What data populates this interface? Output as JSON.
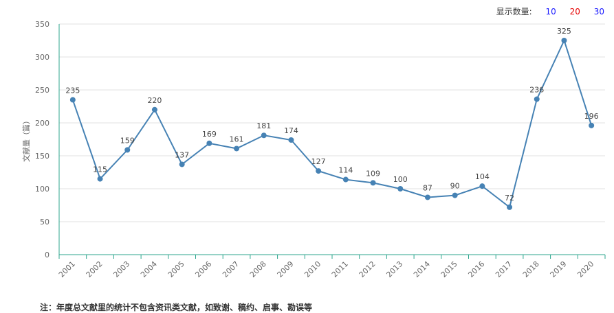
{
  "display_count": {
    "label": "显示数量:",
    "options": [
      {
        "label": "10",
        "color": "#1a1aff"
      },
      {
        "label": "20",
        "color": "#e60000"
      },
      {
        "label": "30",
        "color": "#1a1aff"
      }
    ]
  },
  "note": "注：年度总文献里的统计不包含资讯类文献，如致谢、稿约、启事、勘误等",
  "chart_data": {
    "type": "line",
    "ylabel": "文献量（篇）",
    "xlabel": "",
    "title": "",
    "ylim": [
      0,
      350
    ],
    "yticks": [
      0,
      50,
      100,
      150,
      200,
      250,
      300,
      350
    ],
    "categories": [
      "2001",
      "2002",
      "2003",
      "2004",
      "2005",
      "2006",
      "2007",
      "2008",
      "2009",
      "2010",
      "2011",
      "2012",
      "2013",
      "2014",
      "2015",
      "2016",
      "2017",
      "2018",
      "2019",
      "2020"
    ],
    "values": [
      235,
      115,
      159,
      220,
      137,
      169,
      161,
      181,
      174,
      127,
      114,
      109,
      100,
      87,
      90,
      104,
      72,
      236,
      325,
      196
    ],
    "line_color": "#4682b4",
    "grid": true
  }
}
